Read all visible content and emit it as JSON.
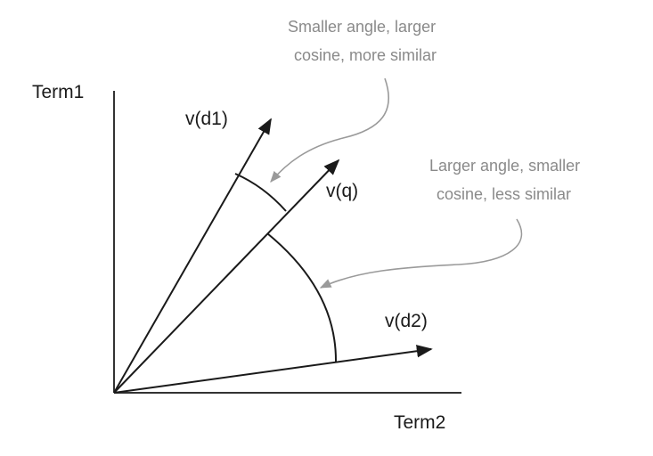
{
  "diagram": {
    "axes": {
      "y_label": "Term1",
      "x_label": "Term2"
    },
    "vectors": {
      "d1": "v(d1)",
      "q": "v(q)",
      "d2": "v(d2)"
    },
    "annotations": {
      "small_angle": {
        "line1": "Smaller angle, larger",
        "line2": "cosine, more similar"
      },
      "large_angle": {
        "line1": "Larger angle, smaller",
        "line2": "cosine, less similar"
      }
    },
    "colors": {
      "line": "#1a1a1a",
      "axis": "#333333",
      "annotation": "#8a8a8a",
      "callout": "#9a9a9a"
    }
  }
}
